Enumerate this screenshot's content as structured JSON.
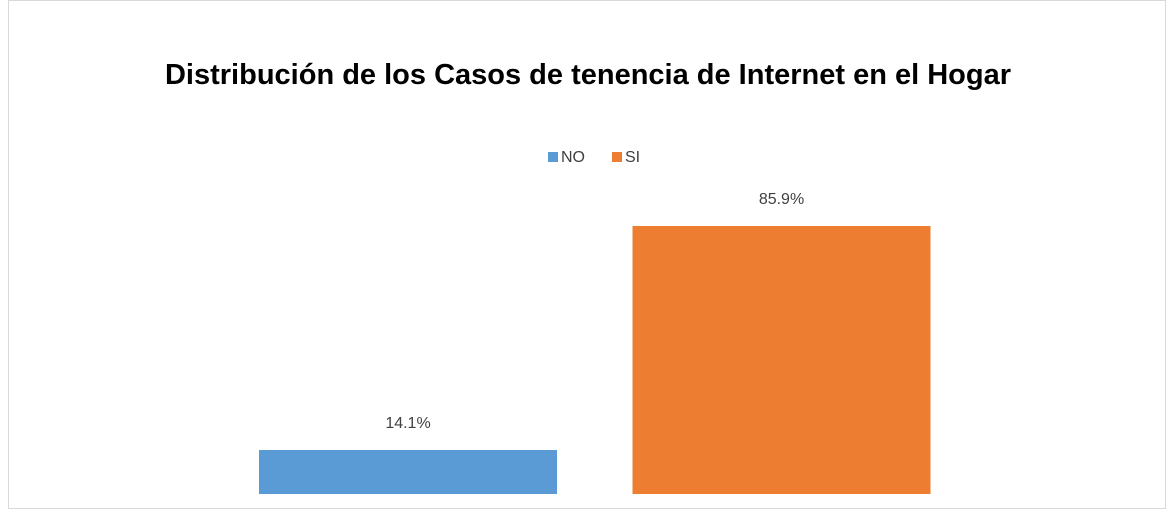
{
  "chart_data": {
    "type": "bar",
    "title": "Distribución de los Casos de tenencia de Internet en el Hogar",
    "series": [
      {
        "name": "NO",
        "color": "#5b9bd5",
        "values": [
          14.1
        ],
        "value_labels": [
          "14.1%"
        ]
      },
      {
        "name": "SI",
        "color": "#ed7d31",
        "values": [
          85.9
        ],
        "value_labels": [
          "85.9%"
        ]
      }
    ],
    "legend": "top"
  }
}
